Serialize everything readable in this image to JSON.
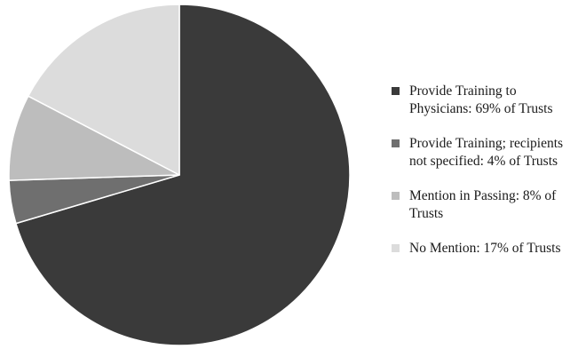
{
  "chart_data": {
    "type": "pie",
    "title": "",
    "legend_position": "right",
    "slices": [
      {
        "label": "Provide Training to Physicians: 69% of Trusts",
        "value": 69,
        "color": "#3a3a3a"
      },
      {
        "label": "Provide Training; recipients not specified: 4% of Trusts",
        "value": 4,
        "color": "#6f6f6f"
      },
      {
        "label": "Mention in Passing: 8% of Trusts",
        "value": 8,
        "color": "#bdbdbd"
      },
      {
        "label": "No Mention: 17% of Trusts",
        "value": 17,
        "color": "#dcdcdc"
      }
    ]
  }
}
